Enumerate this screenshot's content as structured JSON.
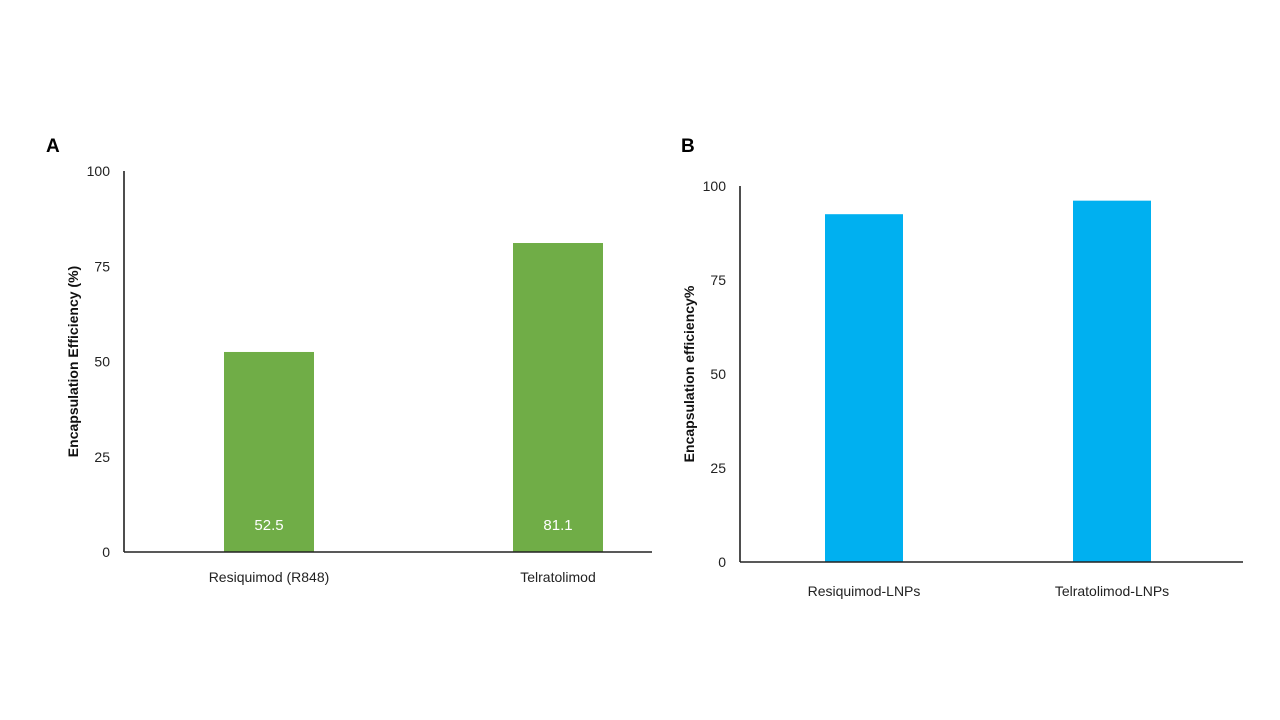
{
  "panels": [
    {
      "letter": "A"
    },
    {
      "letter": "B"
    }
  ],
  "chart_data": [
    {
      "type": "bar",
      "title": "",
      "xlabel": "",
      "ylabel": "Encapsulation Efficiency (%)",
      "ylim": [
        0,
        100
      ],
      "yticks": [
        0,
        25,
        50,
        75,
        100
      ],
      "grid": false,
      "color": "#70ad47",
      "categories": [
        "Resiquimod (R848)",
        "Telratolimod"
      ],
      "values": [
        52.5,
        81.1
      ],
      "data_labels": [
        "52.5",
        "81.1"
      ]
    },
    {
      "type": "bar",
      "title": "",
      "xlabel": "",
      "ylabel": "Encapsulation efficiency%",
      "ylim": [
        0,
        100
      ],
      "yticks": [
        0,
        25,
        50,
        75,
        100
      ],
      "grid": false,
      "color": "#00b0f0",
      "categories": [
        "Resiquimod-LNPs",
        "Telratolimod-LNPs"
      ],
      "values": [
        92.5,
        96.1
      ]
    }
  ]
}
